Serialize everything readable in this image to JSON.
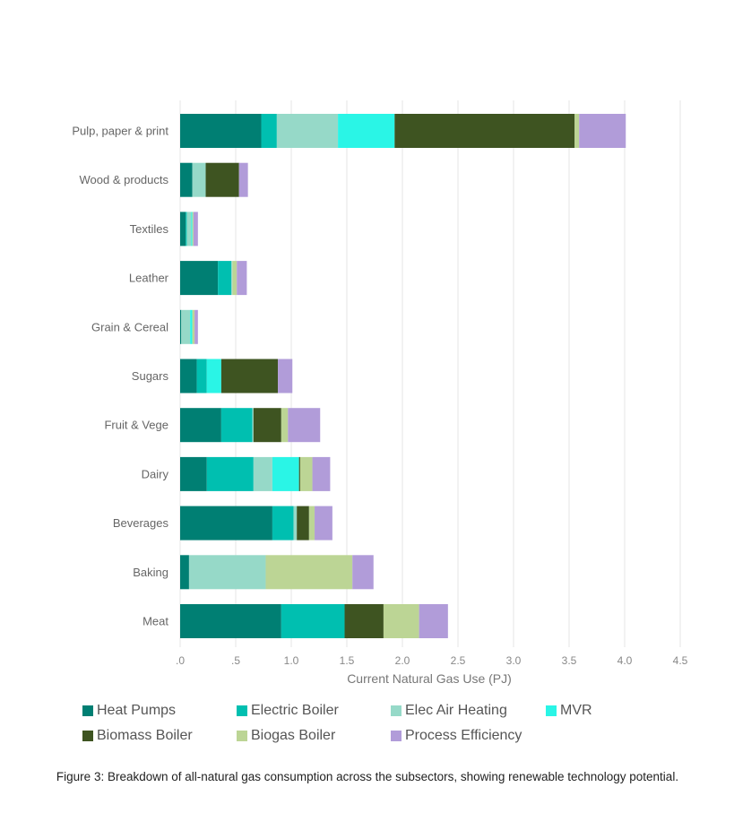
{
  "chart_data": {
    "type": "bar",
    "orientation": "horizontal",
    "stacked": true,
    "categories": [
      "Pulp, paper & print",
      "Wood & products",
      "Textiles",
      "Leather",
      "Grain & Cereal",
      "Sugars",
      "Fruit & Vege",
      "Dairy",
      "Beverages",
      "Baking",
      "Meat"
    ],
    "series": [
      {
        "name": "Heat Pumps",
        "color": "#007f73",
        "values": [
          0.73,
          0.11,
          0.05,
          0.34,
          0.01,
          0.15,
          0.37,
          0.24,
          0.83,
          0.08,
          0.91
        ]
      },
      {
        "name": "Electric Boiler",
        "color": "#00bfb0",
        "values": [
          0.14,
          0.0,
          0.01,
          0.12,
          0.0,
          0.09,
          0.28,
          0.42,
          0.19,
          0.0,
          0.57
        ]
      },
      {
        "name": "Elec Air Heating",
        "color": "#96d9c8",
        "values": [
          0.55,
          0.12,
          0.04,
          0.01,
          0.08,
          0.0,
          0.01,
          0.17,
          0.03,
          0.69,
          0.0
        ]
      },
      {
        "name": "MVR",
        "color": "#2af5e6",
        "values": [
          0.51,
          0.0,
          0.01,
          0.0,
          0.02,
          0.13,
          0.0,
          0.24,
          0.0,
          0.0,
          0.0
        ]
      },
      {
        "name": "Biomass Boiler",
        "color": "#3e5421",
        "values": [
          1.62,
          0.3,
          0.0,
          0.0,
          0.0,
          0.51,
          0.25,
          0.01,
          0.11,
          0.0,
          0.35
        ]
      },
      {
        "name": "Biogas Boiler",
        "color": "#bcd595",
        "values": [
          0.04,
          0.0,
          0.01,
          0.04,
          0.02,
          0.0,
          0.06,
          0.11,
          0.05,
          0.78,
          0.32
        ]
      },
      {
        "name": "Process Efficiency",
        "color": "#b19cd9",
        "values": [
          0.42,
          0.08,
          0.04,
          0.09,
          0.03,
          0.13,
          0.29,
          0.16,
          0.16,
          0.19,
          0.26
        ]
      }
    ],
    "xlabel": "Current Natural Gas Use (PJ)",
    "ylabel": "",
    "xlim": [
      0,
      4.5
    ],
    "xticks": [
      ".0",
      ".5",
      "1.0",
      "1.5",
      "2.0",
      "2.5",
      "3.0",
      "3.5",
      "4.0",
      "4.5"
    ],
    "grid": true,
    "legend_position": "bottom"
  },
  "caption": "Figure 3: Breakdown of all-natural gas consumption across the subsectors, showing renewable technology potential."
}
